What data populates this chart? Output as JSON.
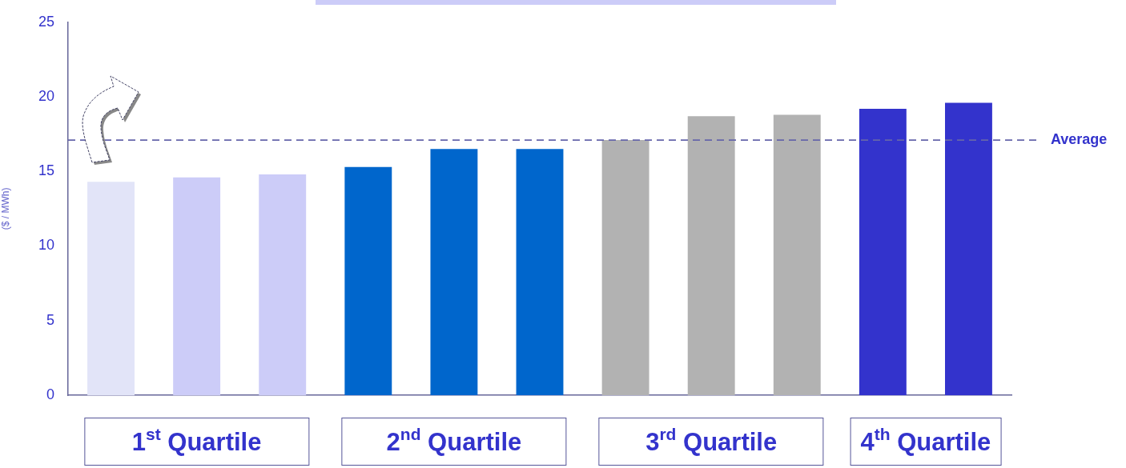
{
  "chart_data": {
    "type": "bar",
    "ylabel": "($ / MWh)",
    "categories": [
      null,
      null,
      null,
      null,
      null,
      null,
      null,
      null,
      null,
      null,
      null
    ],
    "values": [
      14.3,
      14.6,
      14.8,
      15.3,
      16.5,
      16.5,
      17.1,
      18.7,
      18.8,
      19.2,
      19.6
    ],
    "colors": [
      "#e2e4f8",
      "#ccccf8",
      "#ccccf8",
      "#0066cc",
      "#0066cc",
      "#0066cc",
      "#b2b2b2",
      "#b2b2b2",
      "#b2b2b2",
      "#3333cc",
      "#3333cc"
    ],
    "ylim": [
      0,
      25
    ],
    "yticks": [
      0,
      5,
      10,
      15,
      20,
      25
    ],
    "tick_labels": "y",
    "ref_lines": [
      {
        "axis": "y",
        "value": 17.1,
        "label": "Average",
        "color": "#6666aa",
        "line_style": "dashed"
      }
    ],
    "annotations": [
      "1$^{st}$ Quartile",
      "2$^{nd}$ Quartile",
      "3$^{rd}$ Quartile",
      "4$^{th}$ Quartile"
    ]
  }
}
